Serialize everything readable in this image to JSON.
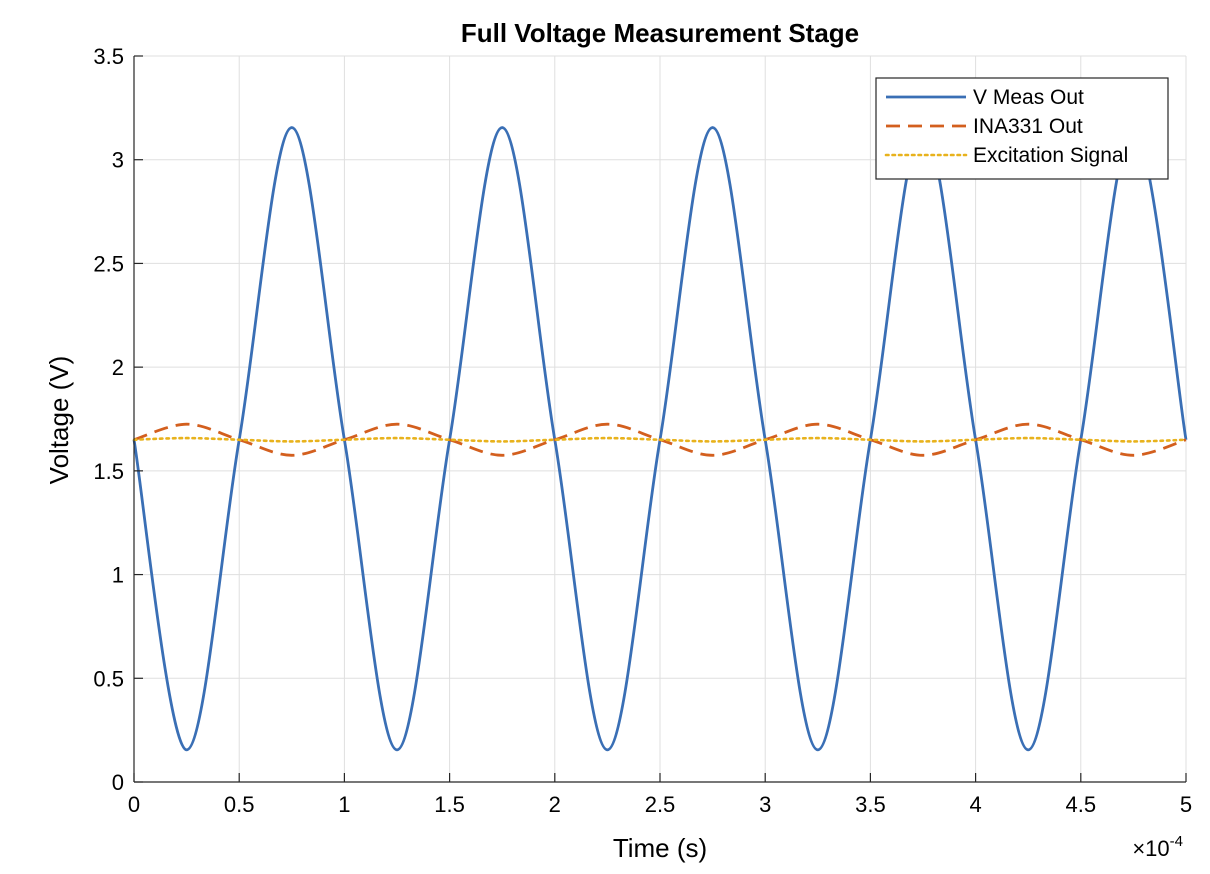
{
  "chart_data": {
    "type": "line",
    "title": "Full Voltage Measurement Stage",
    "xlabel": "Time (s)",
    "ylabel": "Voltage (V)",
    "x_exponent_label": "×10",
    "x_exponent_power": "-4",
    "xlim": [
      0,
      5
    ],
    "ylim": [
      0,
      3.5
    ],
    "x_ticks": [
      0,
      0.5,
      1,
      1.5,
      2,
      2.5,
      3,
      3.5,
      4,
      4.5,
      5
    ],
    "x_tick_labels": [
      "0",
      "0.5",
      "1",
      "1.5",
      "2",
      "2.5",
      "3",
      "3.5",
      "4",
      "4.5",
      "5"
    ],
    "y_ticks": [
      0,
      0.5,
      1,
      1.5,
      2,
      2.5,
      3,
      3.5
    ],
    "y_tick_labels": [
      "0",
      "0.5",
      "1",
      "1.5",
      "2",
      "2.5",
      "3",
      "3.5"
    ],
    "grid": true,
    "legend_position": "top-right",
    "series": [
      {
        "name": "V Meas Out",
        "color": "#3a6fb5",
        "style": "solid",
        "x": [
          0,
          0.25,
          0.5,
          0.75,
          1,
          1.25,
          1.5,
          1.75,
          2,
          2.25,
          2.5,
          2.75,
          3,
          3.25,
          3.5,
          3.75,
          4,
          4.25,
          4.5,
          4.75,
          5
        ],
        "y": [
          1.65,
          0.155,
          1.65,
          3.155,
          1.65,
          0.155,
          1.65,
          3.155,
          1.65,
          0.155,
          1.65,
          3.155,
          1.65,
          0.155,
          1.65,
          3.155,
          1.65,
          0.155,
          1.65,
          3.155,
          1.65
        ]
      },
      {
        "name": "INA331 Out",
        "color": "#d35f1e",
        "style": "dashed",
        "x": [
          0,
          0.25,
          0.5,
          0.75,
          1,
          1.25,
          1.5,
          1.75,
          2,
          2.25,
          2.5,
          2.75,
          3,
          3.25,
          3.5,
          3.75,
          4,
          4.25,
          4.5,
          4.75,
          5
        ],
        "y": [
          1.65,
          1.725,
          1.65,
          1.575,
          1.65,
          1.725,
          1.65,
          1.575,
          1.65,
          1.725,
          1.65,
          1.575,
          1.65,
          1.725,
          1.65,
          1.575,
          1.65,
          1.725,
          1.65,
          1.575,
          1.65
        ]
      },
      {
        "name": "Excitation Signal",
        "color": "#e8b21c",
        "style": "dotted",
        "x": [
          0,
          0.25,
          0.5,
          0.75,
          1,
          1.25,
          1.5,
          1.75,
          2,
          2.25,
          2.5,
          2.75,
          3,
          3.25,
          3.5,
          3.75,
          4,
          4.25,
          4.5,
          4.75,
          5
        ],
        "y": [
          1.65,
          1.658,
          1.65,
          1.642,
          1.65,
          1.658,
          1.65,
          1.642,
          1.65,
          1.658,
          1.65,
          1.642,
          1.65,
          1.658,
          1.65,
          1.642,
          1.65,
          1.658,
          1.65,
          1.642,
          1.65
        ]
      }
    ]
  }
}
